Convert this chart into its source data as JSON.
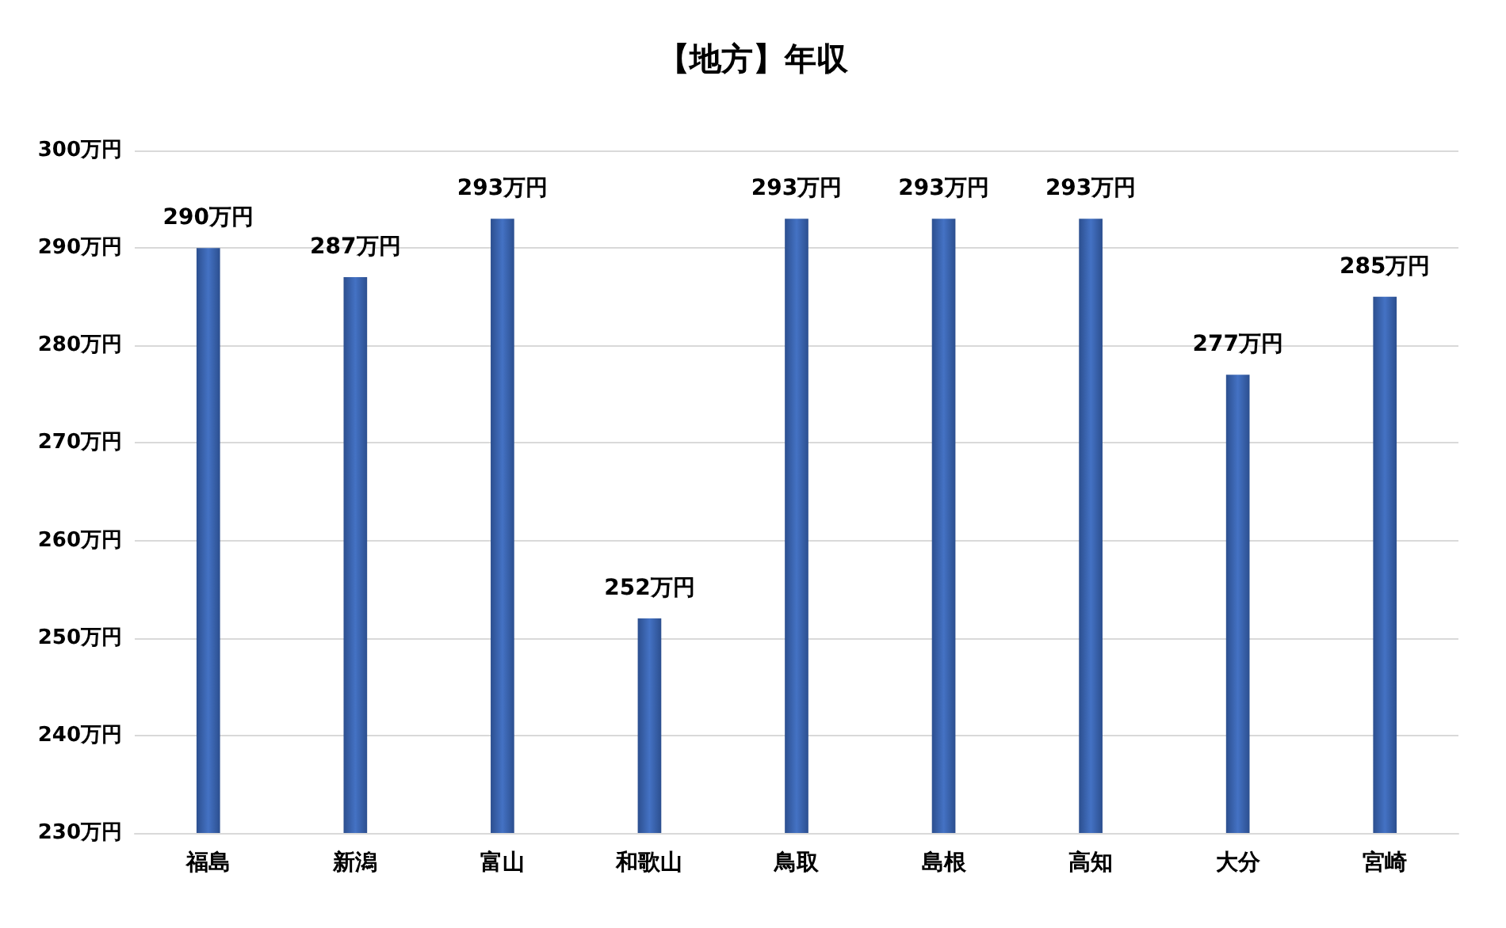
{
  "chart_data": {
    "type": "bar",
    "title": "【地方】年収",
    "categories": [
      "福島",
      "新潟",
      "富山",
      "和歌山",
      "鳥取",
      "島根",
      "高知",
      "大分",
      "宮崎"
    ],
    "values": [
      290,
      287,
      293,
      252,
      293,
      293,
      293,
      277,
      285
    ],
    "value_labels": [
      "290万円",
      "287万円",
      "293万円",
      "252万円",
      "293万円",
      "293万円",
      "293万円",
      "277万円",
      "285万円"
    ],
    "color": "#4472c4",
    "ylim": [
      230,
      300
    ],
    "yticks": [
      {
        "value": 230,
        "label": "230万円"
      },
      {
        "value": 240,
        "label": "240万円"
      },
      {
        "value": 250,
        "label": "250万円"
      },
      {
        "value": 260,
        "label": "260万円"
      },
      {
        "value": 270,
        "label": "270万円"
      },
      {
        "value": 280,
        "label": "280万円"
      },
      {
        "value": 290,
        "label": "290万円"
      },
      {
        "value": 300,
        "label": "300万円"
      }
    ],
    "grid": "y"
  }
}
